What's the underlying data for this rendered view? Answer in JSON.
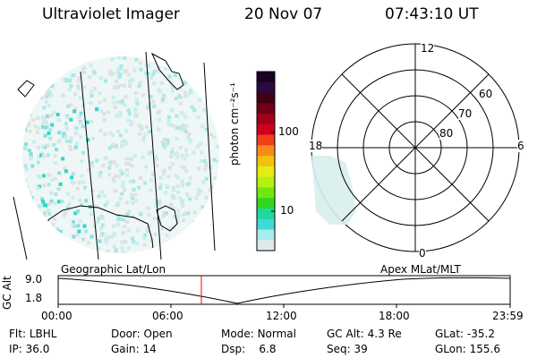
{
  "header": {
    "title": "Ultraviolet Imager",
    "date": "20 Nov 07",
    "time": "07:43:10 UT"
  },
  "colorbar": {
    "unit_label": "photon cm⁻²s⁻¹",
    "ticks": [
      "100",
      "10"
    ],
    "colors": [
      "#1a0025",
      "#2a0a40",
      "#400014",
      "#700018",
      "#a00018",
      "#d0001c",
      "#f0401c",
      "#f88a1c",
      "#f4c010",
      "#e4ec10",
      "#b4f010",
      "#70e810",
      "#30d820",
      "#20d8a0",
      "#40d8d8",
      "#a8ecec",
      "#e0eaea"
    ]
  },
  "polar": {
    "mlt_labels": {
      "top": "12",
      "left": "18",
      "right": "6",
      "bottom": "0"
    },
    "lat_labels": [
      "60",
      "70",
      "80"
    ]
  },
  "orbit_panel": {
    "left_title": "Geographic Lat/Lon",
    "right_title": "Apex MLat/MLT",
    "ylabel": "GC Alt",
    "yticks": [
      "9.0",
      "1.8"
    ],
    "xticks": [
      "00:00",
      "06:00",
      "12:00",
      "18:00",
      "23:59"
    ],
    "marker_color": "#ff0000"
  },
  "info": {
    "row1": [
      {
        "label": "Flt:",
        "value": "LBHL"
      },
      {
        "label": "Door:",
        "value": "Open"
      },
      {
        "label": "Mode:",
        "value": "Normal"
      },
      {
        "label": "GC Alt:",
        "value": "4.3 Re"
      },
      {
        "label": "GLat:",
        "value": "-35.2"
      }
    ],
    "row2": [
      {
        "label": "IP:",
        "value": "36.0"
      },
      {
        "label": "Gain:",
        "value": "14"
      },
      {
        "label": "Dsp:",
        "value": "6.8"
      },
      {
        "label": "Seq:",
        "value": "39"
      },
      {
        "label": "GLon:",
        "value": "155.6"
      }
    ]
  }
}
